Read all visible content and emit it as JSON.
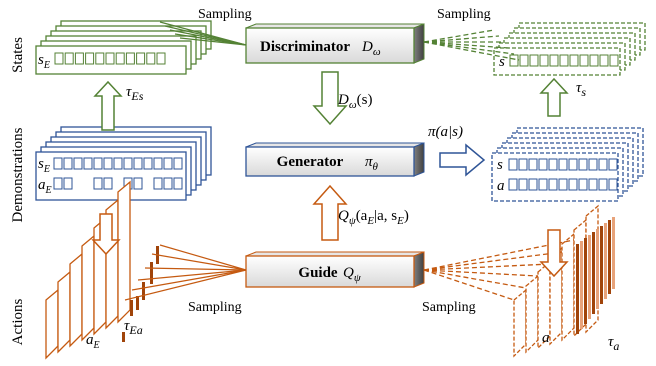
{
  "row_labels": {
    "states": "States",
    "demonstrations": "Demonstrations",
    "actions": "Actions"
  },
  "sampling": {
    "top_left": "Sampling",
    "top_right": "Sampling",
    "bottom_left": "Sampling",
    "bottom_right": "Sampling"
  },
  "boxes": {
    "discriminator": {
      "label": "Discriminator",
      "symbol": "D",
      "sub": "ω"
    },
    "generator": {
      "label": "Generator",
      "symbol": "π",
      "sub": "θ"
    },
    "guide": {
      "label": "Guide",
      "symbol": "Q",
      "sub": "ψ"
    }
  },
  "arrows": {
    "d_omega_s": {
      "base": "D",
      "sub": "ω",
      "tail": "(s)"
    },
    "pi_a_s": {
      "text": "π(a|s)"
    },
    "q_psi": {
      "base": "Q",
      "sub": "ψ",
      "tail": "(a",
      "sub2": "E",
      "tail2": "|a, s",
      "sub3": "E",
      "tail3": ")"
    }
  },
  "taus": {
    "tau_Es": {
      "base": "τ",
      "sub": "Es"
    },
    "tau_s": {
      "base": "τ",
      "sub": "s"
    },
    "tau_Ea": {
      "base": "τ",
      "sub": "Ea"
    },
    "tau_a": {
      "base": "τ",
      "sub": "a"
    }
  },
  "stack_labels": {
    "states_sE": {
      "base": "s",
      "sub": "E"
    },
    "demo_sE": {
      "base": "s",
      "sub": "E"
    },
    "demo_aE": {
      "base": "a",
      "sub": "E"
    },
    "actions_aE": {
      "base": "a",
      "sub": "E"
    },
    "gen_s": "s",
    "gen_a": "a",
    "sampled_s": "s",
    "sampled_a": "a"
  },
  "colors": {
    "green": "#548235",
    "blue": "#2f5597",
    "orange": "#c55a11",
    "dark_orange": "#a0440a"
  }
}
